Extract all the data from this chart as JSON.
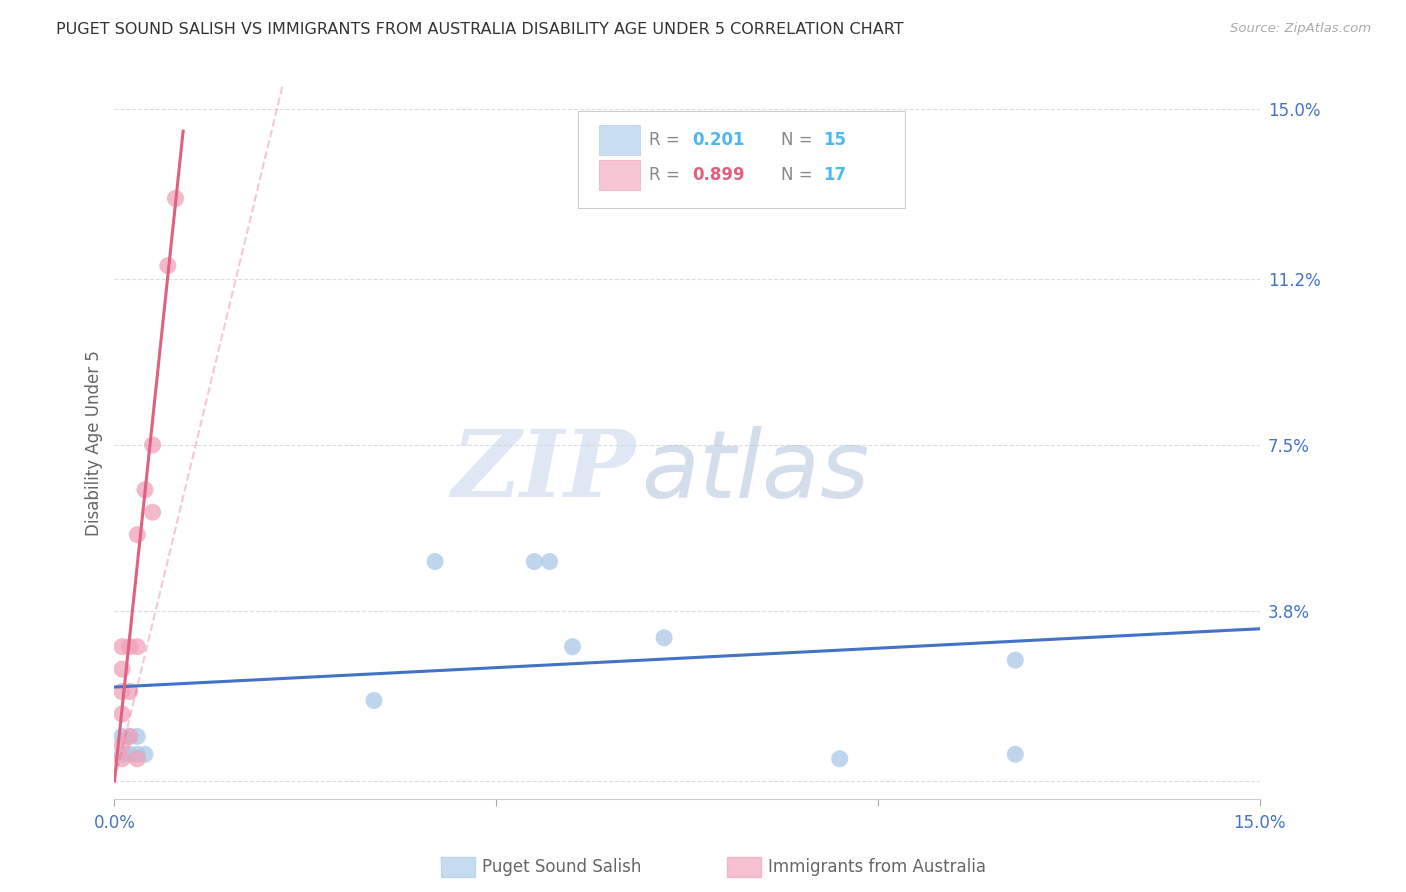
{
  "title": "PUGET SOUND SALISH VS IMMIGRANTS FROM AUSTRALIA DISABILITY AGE UNDER 5 CORRELATION CHART",
  "source": "Source: ZipAtlas.com",
  "ylabel": "Disability Age Under 5",
  "y_tick_values": [
    0.0,
    0.038,
    0.075,
    0.112,
    0.15
  ],
  "y_tick_labels": [
    "",
    "3.8%",
    "7.5%",
    "11.2%",
    "15.0%"
  ],
  "x_tick_values": [
    0.0,
    0.05,
    0.1,
    0.15
  ],
  "x_tick_labels": [
    "0.0%",
    "",
    "",
    "15.0%"
  ],
  "xlim": [
    0.0,
    0.15
  ],
  "ylim": [
    -0.004,
    0.155
  ],
  "blue_scatter_x": [
    0.001,
    0.001,
    0.002,
    0.002,
    0.003,
    0.003,
    0.004,
    0.034,
    0.042,
    0.055,
    0.057,
    0.06,
    0.072,
    0.095,
    0.118,
    0.118
  ],
  "blue_scatter_y": [
    0.006,
    0.01,
    0.006,
    0.01,
    0.006,
    0.01,
    0.006,
    0.018,
    0.049,
    0.049,
    0.049,
    0.03,
    0.032,
    0.005,
    0.027,
    0.006
  ],
  "pink_scatter_x": [
    0.001,
    0.001,
    0.001,
    0.001,
    0.001,
    0.001,
    0.002,
    0.002,
    0.002,
    0.003,
    0.003,
    0.003,
    0.004,
    0.005,
    0.005,
    0.007,
    0.008
  ],
  "pink_scatter_y": [
    0.005,
    0.008,
    0.015,
    0.02,
    0.025,
    0.03,
    0.01,
    0.02,
    0.03,
    0.005,
    0.03,
    0.055,
    0.065,
    0.06,
    0.075,
    0.115,
    0.13
  ],
  "blue_line_x": [
    0.0,
    0.15
  ],
  "blue_line_y": [
    0.021,
    0.034
  ],
  "pink_solid_line_x": [
    0.0,
    0.009
  ],
  "pink_solid_line_y": [
    0.0,
    0.145
  ],
  "pink_dash_line_x": [
    0.0,
    0.022
  ],
  "pink_dash_line_y": [
    0.0,
    0.155
  ],
  "watermark_zip": "ZIP",
  "watermark_atlas": "atlas",
  "title_color": "#333333",
  "source_color": "#aaaaaa",
  "axis_label_color": "#666666",
  "tick_color": "#4472c4",
  "grid_color": "#dddddd",
  "blue_dot_color": "#a8c8e8",
  "pink_dot_color": "#f0a0b8",
  "blue_line_color": "#4472c4",
  "pink_line_color": "#e06080",
  "legend_R_color_blue": "#4db8f0",
  "legend_R_color_pink": "#e06080",
  "legend_N_color": "#4db8f0",
  "legend_label_color": "#888888",
  "bottom_legend_label_color": "#666666"
}
